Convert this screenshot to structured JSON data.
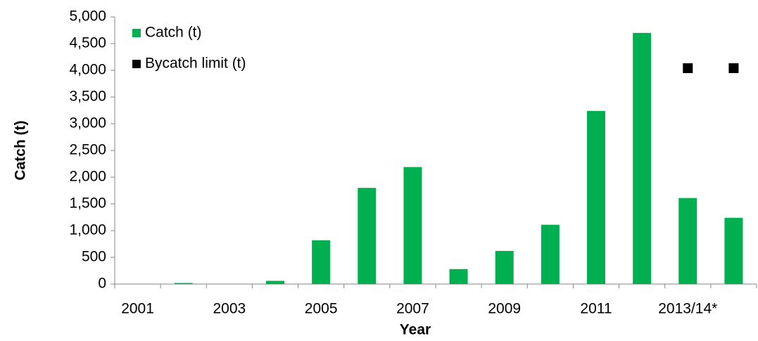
{
  "chart_data": {
    "type": "bar",
    "ylabel": "Catch (t)",
    "xlabel": "Year",
    "categories": [
      "2001",
      null,
      "2003",
      null,
      "2005",
      null,
      "2007",
      null,
      "2009",
      null,
      "2011",
      null,
      "2013/14*",
      null
    ],
    "series": [
      {
        "name": "Catch (t)",
        "color": "#00b050",
        "type": "bar",
        "values": [
          0,
          20,
          0,
          60,
          820,
          1800,
          2190,
          280,
          620,
          1110,
          3240,
          4700,
          1610,
          1240
        ]
      },
      {
        "name": "Bycatch limit (t)",
        "color": "#000000",
        "type": "scatter",
        "values": [
          null,
          null,
          null,
          null,
          null,
          null,
          null,
          null,
          null,
          null,
          null,
          null,
          4040,
          4040
        ]
      }
    ],
    "ylim": [
      0,
      5000
    ],
    "yticks": [
      0,
      500,
      {
        "value": 1000,
        "label": "1,000"
      },
      {
        "value": 1500,
        "label": "1,500"
      },
      {
        "value": 2000,
        "label": "2,000"
      },
      {
        "value": 2500,
        "label": "2,500"
      },
      {
        "value": 3000,
        "label": "3,000"
      },
      {
        "value": 3500,
        "label": "3,500"
      },
      {
        "value": 4000,
        "label": "4,000"
      },
      {
        "value": 4500,
        "label": "4,500"
      },
      {
        "value": 5000,
        "label": "5,000"
      }
    ],
    "legend": "top-left"
  }
}
